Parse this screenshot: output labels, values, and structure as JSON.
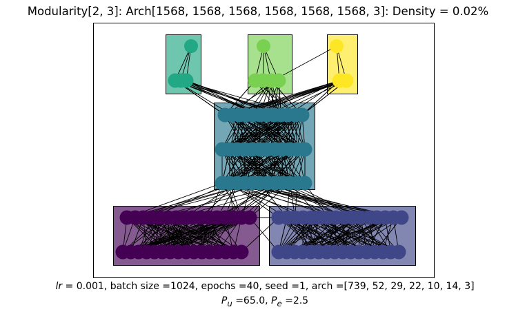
{
  "title": "Modularity[2, 3]: Arch[1568, 1568, 1568, 1568, 1568, 1568, 3]: Density = 0.02%",
  "caption": {
    "lr_symbol": "lr",
    "line1_rest": " =  0.001, batch size =1024, epochs =40, seed =1, arch =[739, 52, 29, 22, 10, 14, 3]",
    "pu_symbol": "P",
    "pu_sub": "u",
    "pu_value": " =65.0, ",
    "pe_symbol": "P",
    "pe_sub": "e",
    "pe_value": " =2.5"
  },
  "colors": {
    "module_bottom_left": "#440154",
    "module_bottom_right": "#3f4788",
    "module_middle": "#2a788e",
    "module_top_1": "#22a884",
    "module_top_2": "#7ad151",
    "module_top_3": "#fde725"
  }
}
